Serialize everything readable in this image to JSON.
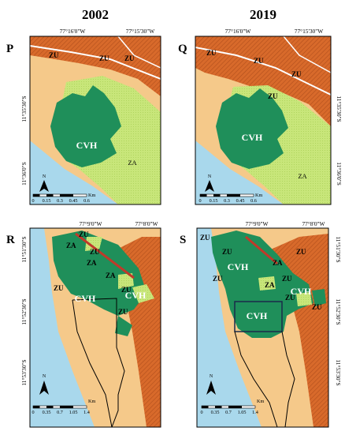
{
  "years": {
    "left": "2002",
    "right": "2019"
  },
  "colors": {
    "ocean": "#a9d8ec",
    "sand": "#f5c98a",
    "urban": "#d86a2b",
    "forest": "#1f8f5a",
    "agri": "#c8e67a",
    "road": "#c03a2a",
    "frame": "#000000"
  },
  "panels": [
    {
      "id": "P",
      "top_coords": [
        "77°16'0\"W",
        "77°15'30\"W"
      ],
      "side_coords": [
        "11°35'30\"S",
        "11°36'0\"S"
      ],
      "labels": [
        "ZU",
        "ZU",
        "ZU",
        "CVH",
        "ZA"
      ],
      "scale": {
        "ticks": [
          "0",
          "0.15",
          "0.3",
          "0.45",
          "0.6"
        ],
        "unit": "Km"
      },
      "north": "N"
    },
    {
      "id": "Q",
      "top_coords": [
        "77°16'0\"W",
        "77°15'30\"W"
      ],
      "side_coords": [
        "11°35'30\"S",
        "11°36'0\"S"
      ],
      "labels": [
        "ZU",
        "ZU",
        "ZU",
        "ZU",
        "CVH",
        "ZA"
      ],
      "scale": {
        "ticks": [
          "0",
          "0.15",
          "0.3",
          "0.45",
          "0.6"
        ],
        "unit": "Km"
      },
      "north": "N"
    },
    {
      "id": "R",
      "top_coords": [
        "77°9'0\"W",
        "77°8'0\"W"
      ],
      "side_coords": [
        "11°51'30\"S",
        "11°52'30\"S",
        "11°53'30\"S"
      ],
      "labels": [
        "ZU",
        "ZA",
        "ZU",
        "ZA",
        "ZU",
        "ZA",
        "CVH",
        "ZU",
        "CVH",
        "ZU"
      ],
      "scale": {
        "ticks": [
          "0",
          "0.35",
          "0.7",
          "1.05",
          "1.4"
        ],
        "unit": "Km"
      },
      "north": "N"
    },
    {
      "id": "S",
      "top_coords": [
        "77°9'0\"W",
        "77°8'0\"W"
      ],
      "side_coords": [
        "11°51'30\"S",
        "11°52'30\"S",
        "11°53'30\"S"
      ],
      "labels": [
        "ZU",
        "ZU",
        "CVH",
        "ZU",
        "ZU",
        "ZA",
        "ZU",
        "ZA",
        "ZU",
        "CVH",
        "CVH",
        "ZU"
      ],
      "scale": {
        "ticks": [
          "0",
          "0.35",
          "0.7",
          "1.05",
          "1.4"
        ],
        "unit": "Km"
      },
      "north": "N"
    }
  ]
}
